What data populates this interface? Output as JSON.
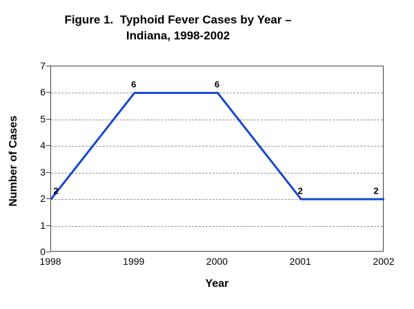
{
  "title": {
    "line1": "Figure 1.  Typhoid Fever Cases by Year –",
    "line2": "Indiana, 1998-2002"
  },
  "axes": {
    "x": {
      "title": "Year",
      "ticks": [
        "1998",
        "1999",
        "2000",
        "2001",
        "2002"
      ]
    },
    "y": {
      "title": "Number of Cases",
      "ticks": [
        "0",
        "1",
        "2",
        "3",
        "4",
        "5",
        "6",
        "7"
      ],
      "range": [
        0,
        7
      ]
    }
  },
  "chart_data": {
    "type": "line",
    "title": "Figure 1. Typhoid Fever Cases by Year – Indiana, 1998-2002",
    "categories": [
      "1998",
      "1999",
      "2000",
      "2001",
      "2002"
    ],
    "values": [
      2,
      6,
      6,
      2,
      2
    ],
    "data_labels": [
      "2",
      "6",
      "6",
      "2",
      "2"
    ],
    "xlabel": "Year",
    "ylabel": "Number of Cases",
    "ylim": [
      0,
      7
    ],
    "y_major_unit": 1,
    "grid": "horizontal-dashed",
    "legend": "none",
    "line_color": "#1747CB",
    "gridline_color": "#8f8f8f",
    "axis_color": "#404040",
    "text_color": "#000000",
    "background_color": "#ffffff"
  }
}
